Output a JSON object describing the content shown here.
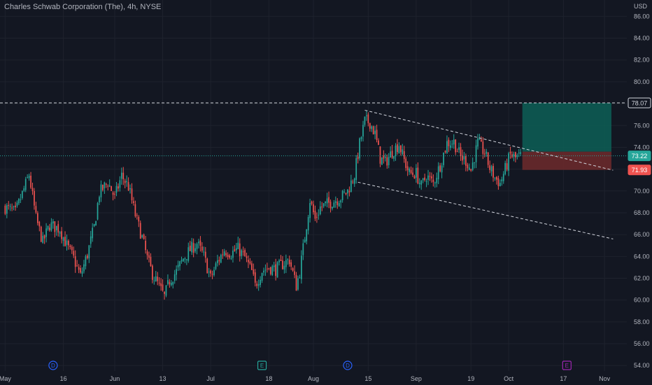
{
  "header": {
    "title": "Charles Schwab Corporation (The), 4h, NYSE"
  },
  "colors": {
    "background": "#131722",
    "up": "#26a69a",
    "down": "#ef5350",
    "grid": "#1e222d",
    "text": "#b2b5be",
    "dash": "#d1d4dc",
    "target_zone": "#0d5f56",
    "stop_zone": "#6e2a2c",
    "event_earnings": "#9c27b0",
    "event_dividend": "#2962ff"
  },
  "chart_data": {
    "type": "candlestick",
    "title": "Charles Schwab Corporation (The), 4h, NYSE",
    "currency": "USD",
    "ylim": [
      53.5,
      87.5
    ],
    "y_ticks": [
      54,
      56,
      58,
      60,
      62,
      64,
      66,
      68,
      70,
      72,
      74,
      76,
      78,
      80,
      82,
      84,
      86
    ],
    "y_tick_labels": [
      "54.00",
      "56.00",
      "58.00",
      "60.00",
      "62.00",
      "64.00",
      "66.00",
      "68.00",
      "70.00",
      "72.00",
      "74.00",
      "76.00",
      "78.00",
      "80.00",
      "82.00",
      "84.00",
      "86.00"
    ],
    "x_ticks": [
      "May",
      "16",
      "Jun",
      "13",
      "Jul",
      "18",
      "Aug",
      "15",
      "Sep",
      "19",
      "Oct",
      "17",
      "Nov"
    ],
    "x_tick_bar_index": [
      0,
      34,
      64,
      92,
      120,
      154,
      180,
      212,
      240,
      272,
      294,
      326,
      350
    ],
    "bar_count_range": [
      -3,
      363
    ],
    "price_badges": [
      {
        "label": "78.07",
        "value": 78.07,
        "style": "outline"
      },
      {
        "label": "73.22",
        "value": 73.22,
        "style": "up"
      },
      {
        "label": "71.93",
        "value": 71.93,
        "style": "down"
      }
    ],
    "current_price": 73.22,
    "horizontal_line": 78.07,
    "trend_lines": [
      {
        "from": [
          210,
          77.4
        ],
        "to": [
          355,
          71.9
        ]
      },
      {
        "from": [
          206,
          70.8
        ],
        "to": [
          355,
          65.6
        ]
      }
    ],
    "position": {
      "start_bar": 302,
      "end_bar": 354,
      "entry": 73.6,
      "target": 78.07,
      "stop": 71.93
    },
    "events": [
      {
        "label": "D",
        "bar": 28,
        "kind": "dividend"
      },
      {
        "label": "E",
        "bar": 150,
        "kind": "earnings-past"
      },
      {
        "label": "D",
        "bar": 200,
        "kind": "dividend"
      },
      {
        "label": "E",
        "bar": 328,
        "kind": "earnings"
      }
    ],
    "waypoints": [
      [
        0,
        68.5
      ],
      [
        6,
        68.0
      ],
      [
        12,
        70.6
      ],
      [
        14,
        71.5
      ],
      [
        18,
        67.5
      ],
      [
        22,
        65.3
      ],
      [
        26,
        66.9
      ],
      [
        32,
        66.5
      ],
      [
        36,
        65.0
      ],
      [
        40,
        63.8
      ],
      [
        44,
        62.2
      ],
      [
        48,
        64.2
      ],
      [
        52,
        66.7
      ],
      [
        55,
        69.8
      ],
      [
        60,
        70.8
      ],
      [
        64,
        69.4
      ],
      [
        68,
        71.4
      ],
      [
        72,
        70.4
      ],
      [
        76,
        67.8
      ],
      [
        80,
        65.7
      ],
      [
        83,
        63.8
      ],
      [
        86,
        62.4
      ],
      [
        90,
        61.2
      ],
      [
        93,
        60.3
      ],
      [
        96,
        61.8
      ],
      [
        100,
        62.6
      ],
      [
        104,
        63.8
      ],
      [
        108,
        64.6
      ],
      [
        112,
        65.2
      ],
      [
        116,
        64.0
      ],
      [
        120,
        62.0
      ],
      [
        124,
        63.5
      ],
      [
        128,
        64.6
      ],
      [
        132,
        64.3
      ],
      [
        136,
        64.7
      ],
      [
        140,
        63.9
      ],
      [
        144,
        62.6
      ],
      [
        146,
        61.3
      ],
      [
        150,
        62.7
      ],
      [
        154,
        63.0
      ],
      [
        158,
        62.8
      ],
      [
        162,
        63.3
      ],
      [
        166,
        63.7
      ],
      [
        170,
        61.3
      ],
      [
        172,
        62.6
      ],
      [
        175,
        65.8
      ],
      [
        178,
        69.2
      ],
      [
        181,
        67.4
      ],
      [
        184,
        68.5
      ],
      [
        188,
        68.8
      ],
      [
        192,
        69.1
      ],
      [
        196,
        69.4
      ],
      [
        200,
        70.0
      ],
      [
        204,
        71.5
      ],
      [
        207,
        74.3
      ],
      [
        210,
        76.4
      ],
      [
        213,
        76.3
      ],
      [
        216,
        75.2
      ],
      [
        219,
        73.0
      ],
      [
        222,
        72.6
      ],
      [
        226,
        73.6
      ],
      [
        230,
        74.3
      ],
      [
        233,
        72.8
      ],
      [
        236,
        71.6
      ],
      [
        240,
        71.6
      ],
      [
        243,
        70.4
      ],
      [
        246,
        71.4
      ],
      [
        250,
        70.7
      ],
      [
        254,
        72.4
      ],
      [
        258,
        74.4
      ],
      [
        262,
        74.5
      ],
      [
        266,
        73.1
      ],
      [
        269,
        72.8
      ],
      [
        272,
        71.9
      ],
      [
        276,
        74.4
      ],
      [
        280,
        73.5
      ],
      [
        283,
        72.1
      ],
      [
        286,
        71.2
      ],
      [
        289,
        70.7
      ],
      [
        292,
        72.0
      ],
      [
        295,
        73.3
      ],
      [
        298,
        73.0
      ],
      [
        301,
        73.2
      ]
    ],
    "seed": 7
  }
}
